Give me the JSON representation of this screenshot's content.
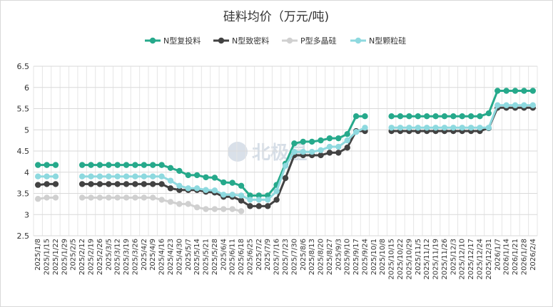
{
  "chart_data": {
    "type": "line",
    "title": "硅料均价（万元/吨)",
    "watermark": "北极星",
    "ylim": [
      2.5,
      6.5
    ],
    "yticks": [
      "2.5",
      "3",
      "3.5",
      "4",
      "4.5",
      "5",
      "5.5",
      "6",
      "6.5"
    ],
    "grid": "horizontal and vertical",
    "legend_position": "top",
    "x": [
      "2025/1/8",
      "2025/1/15",
      "2025/1/22",
      "2025/1/29",
      "2025/2/5",
      "2025/2/12",
      "2025/2/19",
      "2025/2/26",
      "2025/3/5",
      "2025/3/12",
      "2025/3/19",
      "2025/3/26",
      "2025/4/2",
      "2025/4/9",
      "2025/4/16",
      "2025/4/23",
      "2025/4/30",
      "2025/5/7",
      "2025/5/14",
      "2025/5/21",
      "2025/5/28",
      "2025/6/4",
      "2025/6/11",
      "2025/6/18",
      "2025/6/25",
      "2025/7/2",
      "2025/7/9",
      "2025/7/16",
      "2025/7/23",
      "2025/7/30",
      "2025/8/6",
      "2025/8/13",
      "2025/8/20",
      "2025/8/27",
      "2025/9/3",
      "2025/9/10",
      "2025/9/17",
      "2025/9/24",
      "2025/10/1",
      "2025/10/8",
      "2025/10/15",
      "2025/10/22",
      "2025/10/29",
      "2025/11/5",
      "2025/11/12",
      "2025/11/19",
      "2025/11/26",
      "2025/12/3",
      "2025/12/10",
      "2025/12/17",
      "2025/12/24",
      "2025/12/31",
      "2026/1/7",
      "2026/1/14",
      "2026/1/21",
      "2026/1/28",
      "2026/2/4"
    ],
    "xticks_shown": [
      "2025/1/8",
      "2025/1/15",
      "2025/1/22",
      "2025/1/29",
      "2025/2/5",
      "2025/2/12",
      "2025/2/19",
      "2025/2/26",
      "2025/3/5",
      "2025/3/12",
      "2025/3/19",
      "2025/3/26",
      "2025/4/2",
      "2025/4/9",
      "2025/4/16",
      "2025/4/23",
      "2025/4/30",
      "2025/5/7",
      "2025/5/14",
      "2025/5/21",
      "2025/5/28",
      "2025/6/4",
      "2025/6/11",
      "2025/6/18",
      "2025/6/25",
      "2025/7/2",
      "2025/7/9",
      "2025/7/16",
      "2025/7/23",
      "2025/7/30",
      "2025/8/6",
      "2025/8/13",
      "2025/8/20",
      "2025/8/27",
      "2025/9/3",
      "2025/9/10",
      "2025/9/17",
      "2025/9/24",
      "2025/10/1",
      "2025/10/8",
      "2025/10/15",
      "2025/10/22",
      "2025/10/29",
      "2025/11/5",
      "2025/11/12",
      "2025/11/19",
      "2025/11/26",
      "2025/12/3",
      "2025/12/10",
      "2025/12/17",
      "2025/12/24",
      "2025/12/31",
      "2026/1/7",
      "2026/1/14",
      "2026/1/21",
      "2026/1/28",
      "2026/2/4"
    ],
    "series": [
      {
        "name": "N型复投料",
        "color": "#26a98b",
        "values": [
          4.17,
          4.17,
          4.17,
          null,
          null,
          4.17,
          4.17,
          4.17,
          4.17,
          4.17,
          4.17,
          4.17,
          4.17,
          4.17,
          4.17,
          4.1,
          4.03,
          3.93,
          3.93,
          3.88,
          3.87,
          3.76,
          3.75,
          3.68,
          3.45,
          3.45,
          3.45,
          3.7,
          4.2,
          4.68,
          4.72,
          4.72,
          4.75,
          4.8,
          4.8,
          4.9,
          5.32,
          5.32,
          null,
          null,
          5.32,
          5.32,
          5.32,
          5.32,
          5.32,
          5.32,
          5.32,
          5.32,
          5.32,
          5.32,
          5.32,
          5.39,
          5.92,
          5.92,
          5.92,
          5.92,
          5.92
        ]
      },
      {
        "name": "N型致密料",
        "color": "#424242",
        "values": [
          3.7,
          3.72,
          3.72,
          null,
          null,
          3.72,
          3.72,
          3.72,
          3.72,
          3.72,
          3.72,
          3.72,
          3.72,
          3.72,
          3.72,
          3.62,
          3.58,
          3.58,
          3.58,
          3.54,
          3.52,
          3.42,
          3.42,
          3.33,
          3.2,
          3.2,
          3.2,
          3.35,
          3.86,
          4.4,
          4.4,
          4.4,
          4.4,
          4.46,
          4.46,
          4.58,
          4.97,
          4.97,
          null,
          null,
          4.97,
          4.97,
          4.97,
          4.97,
          4.97,
          4.97,
          4.97,
          4.97,
          4.97,
          4.97,
          4.97,
          5.04,
          5.52,
          5.52,
          5.52,
          5.52,
          5.52
        ]
      },
      {
        "name": "P型多晶硅",
        "color": "#d0d0d0",
        "values": [
          3.37,
          3.4,
          3.4,
          null,
          null,
          3.4,
          3.4,
          3.4,
          3.4,
          3.4,
          3.4,
          3.4,
          3.4,
          3.4,
          3.35,
          3.3,
          3.25,
          3.25,
          3.17,
          3.13,
          3.13,
          3.13,
          3.13,
          3.08,
          null,
          null,
          null,
          null,
          null,
          null,
          null,
          null,
          null,
          null,
          null,
          null,
          null,
          null,
          null,
          null,
          null,
          null,
          null,
          null,
          null,
          null,
          null,
          null,
          null,
          null,
          null,
          null,
          null,
          null,
          null,
          null,
          null
        ]
      },
      {
        "name": "N型颗粒硅",
        "color": "#8ed9df",
        "values": [
          3.9,
          3.9,
          3.9,
          null,
          null,
          3.9,
          3.9,
          3.9,
          3.9,
          3.9,
          3.9,
          3.9,
          3.9,
          3.9,
          3.9,
          3.8,
          3.68,
          3.62,
          3.62,
          3.58,
          3.57,
          3.47,
          3.47,
          3.45,
          3.35,
          3.35,
          3.35,
          3.55,
          4.15,
          4.48,
          4.48,
          4.48,
          4.52,
          4.6,
          4.6,
          4.75,
          4.95,
          5.05,
          null,
          null,
          5.05,
          5.05,
          5.05,
          5.05,
          5.05,
          5.05,
          5.05,
          5.05,
          5.05,
          5.05,
          5.05,
          5.05,
          5.58,
          5.58,
          5.58,
          5.58,
          5.58
        ]
      }
    ]
  }
}
